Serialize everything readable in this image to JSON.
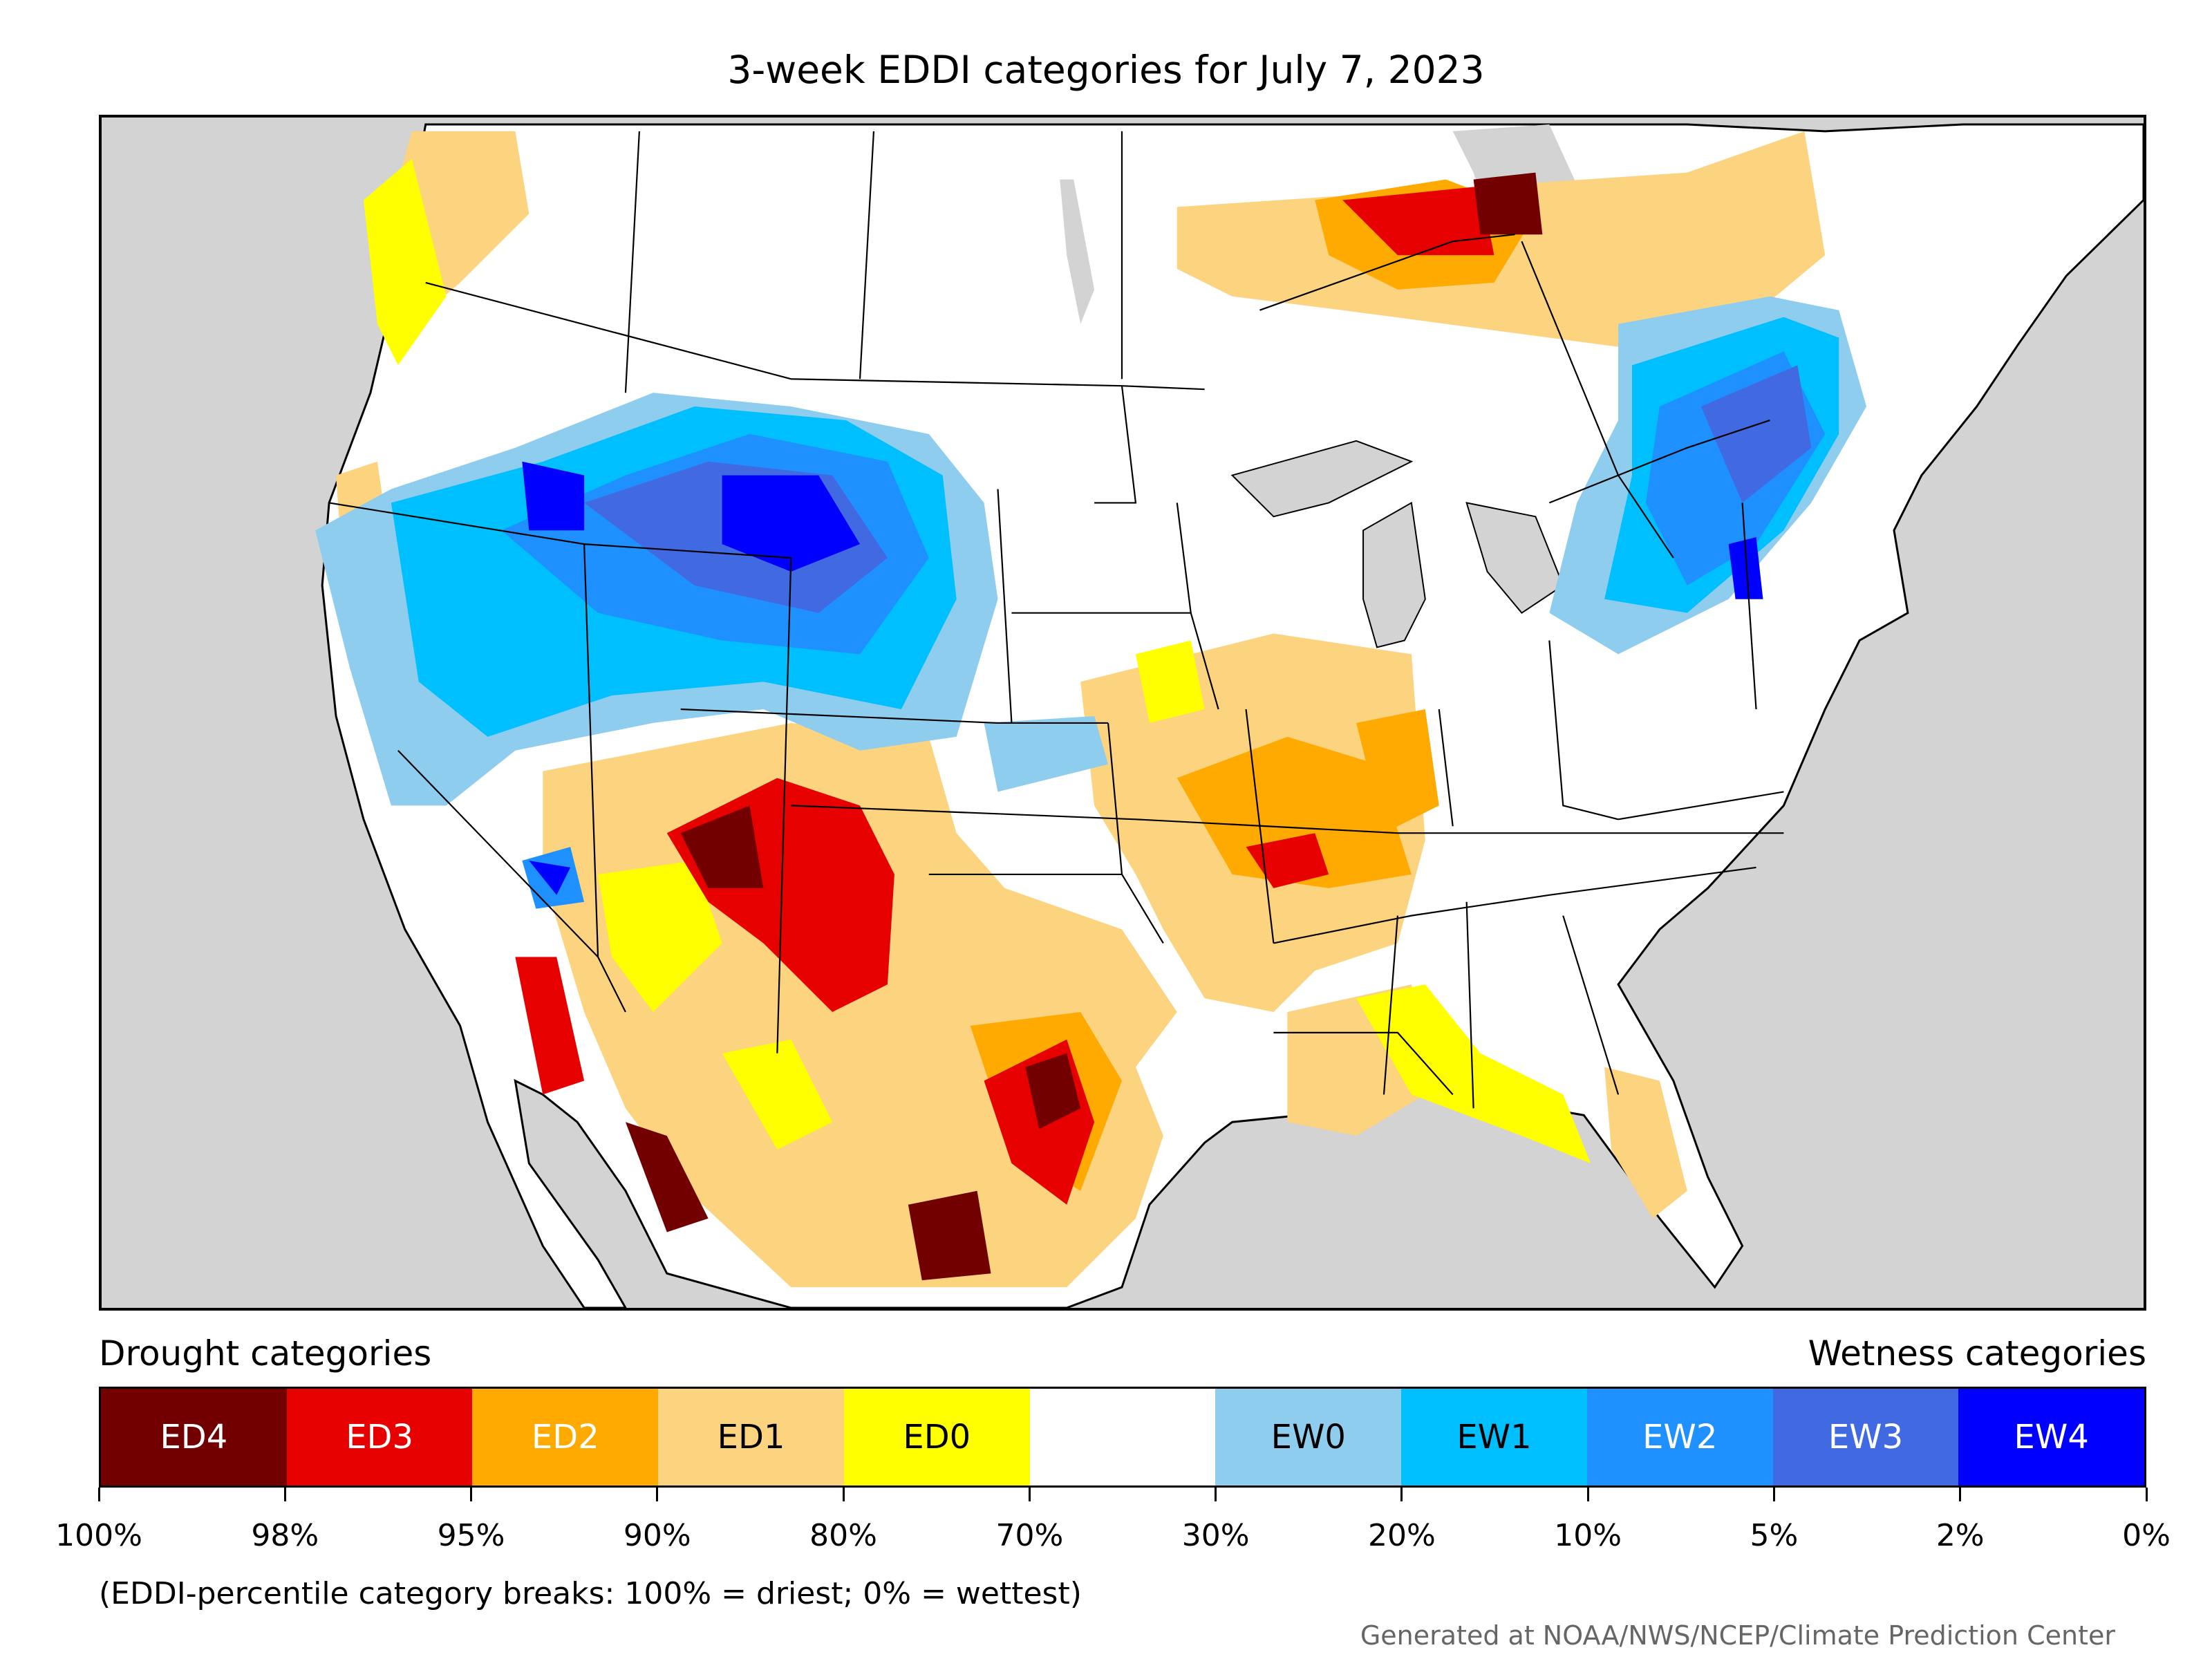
{
  "title": "3-week EDDI categories for July 7, 2023",
  "legend": {
    "drought_heading": "Drought categories",
    "wetness_heading": "Wetness categories",
    "categories": [
      {
        "label": "ED4",
        "color": "#730000",
        "text_color": "#ffffff"
      },
      {
        "label": "ED3",
        "color": "#e60000",
        "text_color": "#ffffff"
      },
      {
        "label": "ED2",
        "color": "#ffaa00",
        "text_color": "#ffffff"
      },
      {
        "label": "ED1",
        "color": "#fcd37f",
        "text_color": "#000000"
      },
      {
        "label": "ED0",
        "color": "#ffff00",
        "text_color": "#000000"
      },
      {
        "label": "",
        "color": "#ffffff",
        "text_color": "#000000"
      },
      {
        "label": "EW0",
        "color": "#8fcdee",
        "text_color": "#000000"
      },
      {
        "label": "EW1",
        "color": "#00bfff",
        "text_color": "#000000"
      },
      {
        "label": "EW2",
        "color": "#1e90ff",
        "text_color": "#ffffff"
      },
      {
        "label": "EW3",
        "color": "#4169e1",
        "text_color": "#ffffff"
      },
      {
        "label": "EW4",
        "color": "#0000ff",
        "text_color": "#ffffff"
      }
    ],
    "tick_labels": [
      "100%",
      "98%",
      "95%",
      "90%",
      "80%",
      "70%",
      "30%",
      "20%",
      "10%",
      "5%",
      "2%",
      "0%"
    ]
  },
  "note": "(EDDI-percentile category breaks: 100% = driest; 0% = wettest)",
  "credit": "Generated at NOAA/NWS/NCEP/Climate Prediction Center",
  "map": {
    "background_color": "#d3d3d3",
    "land_color": "#ffffff",
    "border_color": "#000000"
  }
}
